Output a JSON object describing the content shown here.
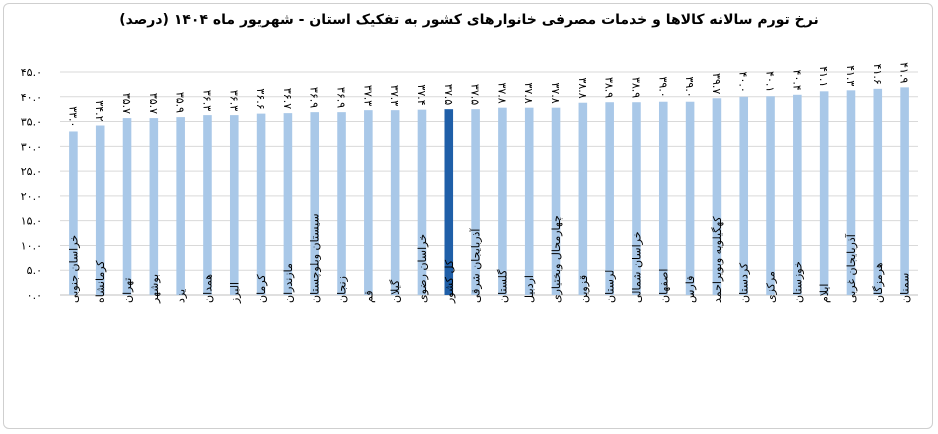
{
  "chart_data": {
    "type": "bar",
    "title": "نرخ تورم سالانه کالاها و خدمات مصرفی خانوارهای کشور به تفکیک استان - شهریور ماه ۱۴۰۴ (درصد)",
    "xlabel": "",
    "ylabel": "",
    "ylim": [
      0,
      45
    ],
    "yticks": [
      "۰.۰",
      "۵.۰",
      "۱۰.۰",
      "۱۵.۰",
      "۲۰.۰",
      "۲۵.۰",
      "۳۰.۰",
      "۳۵.۰",
      "۴۰.۰",
      "۴۵.۰"
    ],
    "grid": true,
    "legend": "none",
    "colors": {
      "bar": "#a9c8e8",
      "highlight": "#1f5fa8"
    },
    "highlight_category": "کل کشور",
    "categories": [
      "خراسان جنوبی",
      "کرمانشاه",
      "تهران",
      "بوشهر",
      "یزد",
      "همدان",
      "البرز",
      "کرمان",
      "مازندران",
      "سیستان وبلوچستان",
      "زنجان",
      "قم",
      "گیلان",
      "خراسان رضوی",
      "کل کشور",
      "آذربایجان شرقی",
      "گلستان",
      "اردبیل",
      "چهارمحال وبختیاری",
      "قزوین",
      "لرستان",
      "خراسان شمالی",
      "اصفهان",
      "فارس",
      "کهگیلویه وبویراحمد",
      "کردستان",
      "مرکزی",
      "خوزستان",
      "ایلام",
      "آذربایجان غربی",
      "هرمزگان",
      "سمنان"
    ],
    "values": [
      33.0,
      34.2,
      35.7,
      35.7,
      35.9,
      36.3,
      36.3,
      36.6,
      36.7,
      36.9,
      36.9,
      37.3,
      37.3,
      37.4,
      37.5,
      37.5,
      37.8,
      37.8,
      37.8,
      38.8,
      38.9,
      38.9,
      39.0,
      39.0,
      39.7,
      40.0,
      40.1,
      40.4,
      41.1,
      41.3,
      41.6,
      41.9
    ],
    "value_labels": [
      "۳۳.۰",
      "۳۴.۲",
      "۳۵.۷",
      "۳۵.۷",
      "۳۵.۹",
      "۳۶.۳",
      "۳۶.۳",
      "۳۶.۶",
      "۳۶.۷",
      "۳۶.۹",
      "۳۶.۹",
      "۳۷.۳",
      "۳۷.۳",
      "۳۷.۴",
      "۳۷.۵",
      "۳۷.۵",
      "۳۷.۸",
      "۳۷.۸",
      "۳۷.۸",
      "۳۸.۸",
      "۳۸.۹",
      "۳۸.۹",
      "۳۹.۰",
      "۳۹.۰",
      "۳۹.۷",
      "۴۰.۰",
      "۴۰.۱",
      "۴۰.۴",
      "۴۱.۱",
      "۴۱.۳",
      "۴۱.۶",
      "۴۱.۹"
    ]
  }
}
